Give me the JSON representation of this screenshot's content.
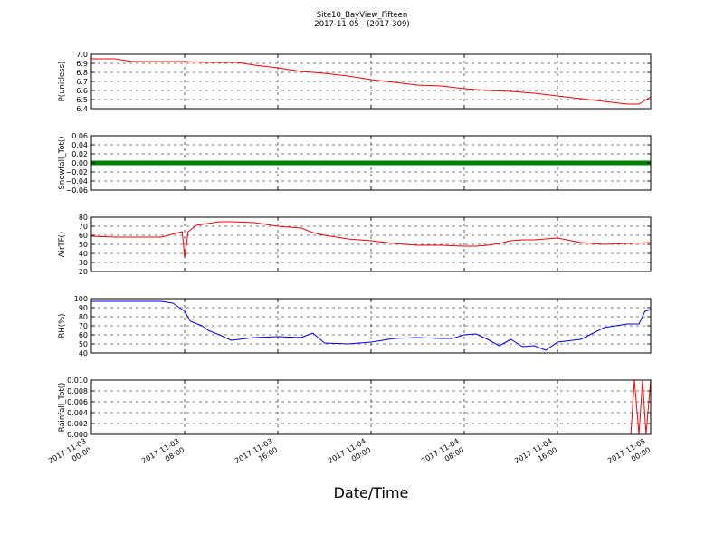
{
  "figure": {
    "title_line1": "Site10_BayView_Fifteen",
    "title_line2": "2017-11-05 - (2017-309)",
    "xlabel": "Date/Time"
  },
  "chart_data": [
    {
      "type": "line",
      "ylabel": "P(unitless)",
      "ylim": [
        6.4,
        7.0
      ],
      "yticks": [
        "7.0",
        "6.9",
        "6.8",
        "6.7",
        "6.6",
        "6.5",
        "6.4"
      ],
      "ytick_values": [
        7.0,
        6.9,
        6.8,
        6.7,
        6.6,
        6.5,
        6.4
      ],
      "grid": true,
      "series": [
        {
          "color": "#ff0000",
          "x_hours": [
            0,
            2,
            3,
            3.5,
            4,
            6,
            8,
            10,
            12,
            12.5,
            14,
            16,
            18,
            20,
            22,
            24,
            26,
            28,
            30,
            32,
            34,
            36,
            38,
            40,
            42,
            44,
            46,
            47,
            48
          ],
          "values": [
            6.95,
            6.95,
            6.93,
            6.92,
            6.92,
            6.92,
            6.92,
            6.91,
            6.91,
            6.91,
            6.88,
            6.85,
            6.81,
            6.79,
            6.76,
            6.72,
            6.69,
            6.66,
            6.65,
            6.62,
            6.6,
            6.59,
            6.57,
            6.54,
            6.51,
            6.48,
            6.45,
            6.45,
            6.53
          ]
        }
      ]
    },
    {
      "type": "scatter",
      "ylabel": "Snowfall_Tot()",
      "ylim": [
        -0.06,
        0.06
      ],
      "yticks": [
        "0.06",
        "0.04",
        "0.02",
        "0.00",
        "−0.02",
        "−0.04",
        "−0.06"
      ],
      "ytick_values": [
        0.06,
        0.04,
        0.02,
        0.0,
        -0.02,
        -0.04,
        -0.06
      ],
      "grid": true,
      "series": [
        {
          "color": "#008000",
          "x_hours": [
            0,
            48
          ],
          "values": [
            0.0,
            0.0
          ]
        }
      ]
    },
    {
      "type": "line",
      "ylabel": "AirTF()",
      "ylim": [
        20,
        80
      ],
      "yticks": [
        "80",
        "70",
        "60",
        "50",
        "40",
        "30",
        "20"
      ],
      "ytick_values": [
        80,
        70,
        60,
        50,
        40,
        30,
        20
      ],
      "grid": true,
      "series": [
        {
          "color": "#ff0000",
          "x_hours": [
            0,
            2,
            4,
            6,
            7.8,
            8,
            8.3,
            9,
            10,
            11,
            12,
            14,
            16,
            18,
            19,
            20,
            22,
            24,
            26,
            28,
            30,
            32,
            33,
            34,
            35,
            36,
            37,
            38,
            40,
            42,
            44,
            46,
            48
          ],
          "values": [
            59,
            58,
            58,
            58,
            64,
            35,
            64,
            71,
            73,
            75,
            75,
            74,
            70,
            68,
            63,
            60,
            56,
            54,
            51,
            49,
            49,
            48,
            48,
            49,
            51,
            54,
            55,
            55,
            57,
            52,
            50,
            51,
            52
          ]
        }
      ]
    },
    {
      "type": "line",
      "ylabel": "RH(%)",
      "ylim": [
        40,
        100
      ],
      "yticks": [
        "100",
        "90",
        "80",
        "70",
        "60",
        "50",
        "40"
      ],
      "ytick_values": [
        100,
        90,
        80,
        70,
        60,
        50,
        40
      ],
      "grid": true,
      "series": [
        {
          "color": "#0000ff",
          "x_hours": [
            0,
            2,
            4,
            6,
            7,
            8,
            8.5,
            9.5,
            10,
            11,
            12,
            14,
            16,
            18,
            19,
            20,
            22,
            24,
            26,
            28,
            30,
            31,
            32,
            33,
            34,
            35,
            36,
            37,
            38,
            39,
            40,
            42,
            44,
            46,
            47,
            47.5,
            48
          ],
          "values": [
            97,
            97,
            97,
            97,
            95,
            86,
            75,
            70,
            65,
            60,
            54,
            57,
            58,
            57,
            62,
            51,
            50,
            52,
            56,
            57,
            56,
            56,
            60,
            61,
            55,
            48,
            55,
            47,
            48,
            43,
            52,
            55,
            68,
            72,
            72,
            86,
            88
          ]
        }
      ]
    },
    {
      "type": "line",
      "ylabel": "Rainfall_Tot()",
      "ylim": [
        0.0,
        0.01
      ],
      "yticks": [
        "0.010",
        "0.008",
        "0.006",
        "0.004",
        "0.002",
        "0.000"
      ],
      "ytick_values": [
        0.01,
        0.008,
        0.006,
        0.004,
        0.002,
        0.0
      ],
      "grid": true,
      "series": [
        {
          "color": "#ff0000",
          "x_hours": [
            0,
            46.3,
            46.6,
            47.0,
            47.3,
            47.6,
            48
          ],
          "values": [
            0.0,
            0.0,
            0.01,
            0.0,
            0.01,
            0.0,
            0.01
          ]
        }
      ]
    }
  ],
  "x_axis": {
    "range_hours": [
      0,
      48
    ],
    "ticks": [
      {
        "hours": 0,
        "line1": "2017-11-03",
        "line2": "00:00"
      },
      {
        "hours": 8,
        "line1": "2017-11-03",
        "line2": "08:00"
      },
      {
        "hours": 16,
        "line1": "2017-11-03",
        "line2": "16:00"
      },
      {
        "hours": 24,
        "line1": "2017-11-04",
        "line2": "00:00"
      },
      {
        "hours": 32,
        "line1": "2017-11-04",
        "line2": "08:00"
      },
      {
        "hours": 40,
        "line1": "2017-11-04",
        "line2": "16:00"
      },
      {
        "hours": 48,
        "line1": "2017-11-05",
        "line2": "00:00"
      }
    ]
  }
}
